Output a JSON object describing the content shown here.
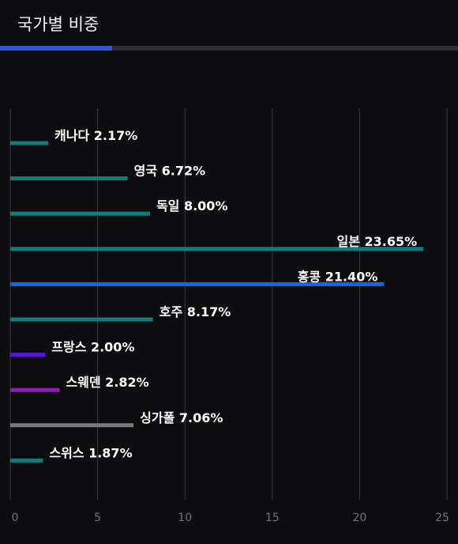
{
  "header": {
    "title": "국가별 비중",
    "tab_progress": 0.245
  },
  "colors": {
    "background": "#0d0d0f",
    "grid": "#3a3c42",
    "tick": "#6f727a",
    "tab_track": "#2c2f36",
    "tab_indicator": "#2f55d4"
  },
  "chart_data": {
    "type": "bar",
    "orientation": "horizontal",
    "categories": [
      "캐나다",
      "영국",
      "독일",
      "일본",
      "홍콩",
      "호주",
      "프랑스",
      "스웨덴",
      "싱가폴",
      "스위스"
    ],
    "values": [
      2.17,
      6.72,
      8.0,
      23.65,
      21.4,
      8.17,
      2.0,
      2.82,
      7.06,
      1.87
    ],
    "labels": [
      "캐나다 2.17%",
      "영국 6.72%",
      "독일 8.00%",
      "일본 23.65%",
      "홍콩 21.40%",
      "호주 8.17%",
      "프랑스 2.00%",
      "스웨덴 2.82%",
      "싱가폴 7.06%",
      "스위스 1.87%"
    ],
    "bar_colors": [
      "#0f7d7d",
      "#0f7d7d",
      "#0f7d7d",
      "#0f7d7d",
      "#1565e8",
      "#0f7d7d",
      "#5a14d8",
      "#a010c8",
      "#7a7a7a",
      "#0f7d7d"
    ],
    "xlim": [
      0,
      25
    ],
    "xticks": [
      0,
      5,
      10,
      15,
      20,
      25
    ],
    "grid": true,
    "legend": "none"
  }
}
